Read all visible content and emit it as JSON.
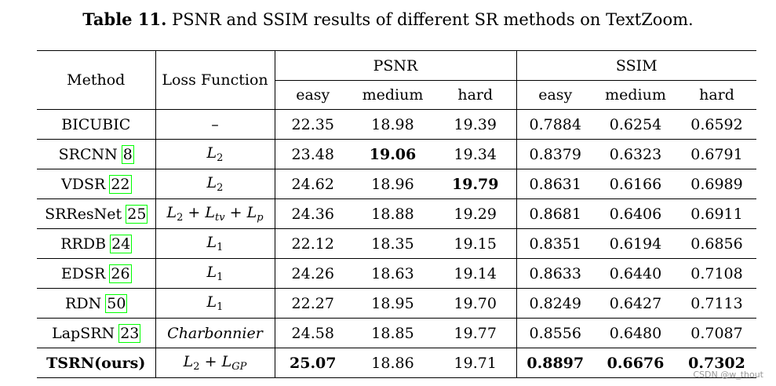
{
  "caption": {
    "label": "Table 11.",
    "text": "PSNR and SSIM results of different SR methods on TextZoom."
  },
  "header": {
    "method": "Method",
    "loss": "Loss Function",
    "psnr": "PSNR",
    "ssim": "SSIM",
    "sub": [
      "easy",
      "medium",
      "hard",
      "easy",
      "medium",
      "hard"
    ]
  },
  "rows": [
    {
      "method": "BICUBIC",
      "cite": "",
      "loss": "–",
      "values": [
        "22.35",
        "18.98",
        "19.39",
        "0.7884",
        "0.6254",
        "0.6592"
      ],
      "bold": []
    },
    {
      "method": "SRCNN",
      "cite": "8",
      "loss": "L2",
      "values": [
        "23.48",
        "19.06",
        "19.34",
        "0.8379",
        "0.6323",
        "0.6791"
      ],
      "bold": [
        1
      ]
    },
    {
      "method": "VDSR",
      "cite": "22",
      "loss": "L2",
      "values": [
        "24.62",
        "18.96",
        "19.79",
        "0.8631",
        "0.6166",
        "0.6989"
      ],
      "bold": [
        2
      ]
    },
    {
      "method": "SRResNet",
      "cite": "25",
      "loss": "L2 + Ltv + Lp",
      "values": [
        "24.36",
        "18.88",
        "19.29",
        "0.8681",
        "0.6406",
        "0.6911"
      ],
      "bold": []
    },
    {
      "method": "RRDB",
      "cite": "24",
      "loss": "L1",
      "values": [
        "22.12",
        "18.35",
        "19.15",
        "0.8351",
        "0.6194",
        "0.6856"
      ],
      "bold": []
    },
    {
      "method": "EDSR",
      "cite": "26",
      "loss": "L1",
      "values": [
        "24.26",
        "18.63",
        "19.14",
        "0.8633",
        "0.6440",
        "0.7108"
      ],
      "bold": []
    },
    {
      "method": "RDN",
      "cite": "50",
      "loss": "L1",
      "values": [
        "22.27",
        "18.95",
        "19.70",
        "0.8249",
        "0.6427",
        "0.7113"
      ],
      "bold": []
    },
    {
      "method": "LapSRN",
      "cite": "23",
      "loss": "Charbonnier",
      "values": [
        "24.58",
        "18.85",
        "19.77",
        "0.8556",
        "0.6480",
        "0.7087"
      ],
      "bold": []
    },
    {
      "method": "TSRN(ours)",
      "cite": "",
      "loss": "L2 + LGP",
      "values": [
        "25.07",
        "18.86",
        "19.71",
        "0.8897",
        "0.6676",
        "0.7302"
      ],
      "bold": [
        0,
        3,
        4,
        5
      ]
    }
  ],
  "watermark": "CSDN @w_thout"
}
